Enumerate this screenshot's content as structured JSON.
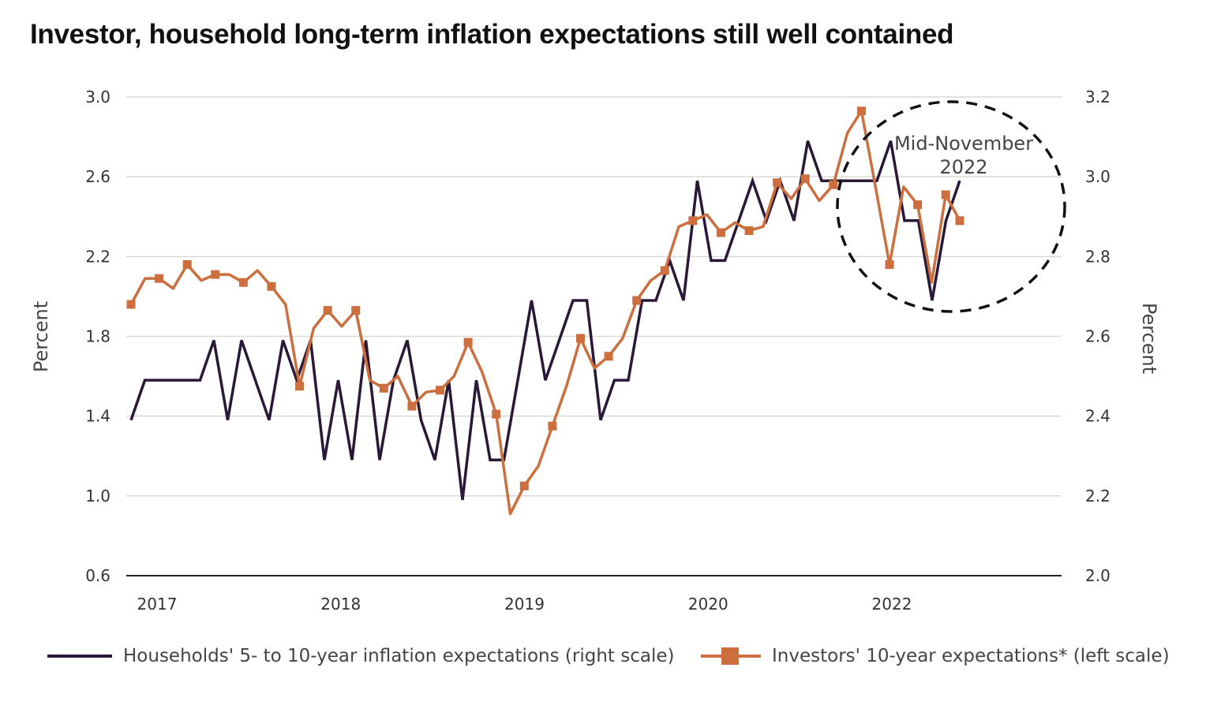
{
  "chart_data": {
    "type": "line",
    "title": "Investor, household long-term inflation expectations still well contained",
    "left_axis": {
      "label": "Percent",
      "range": [
        0.6,
        3.0
      ],
      "ticks": [
        "3.0",
        "2.6",
        "2.2",
        "1.8",
        "1.4",
        "1.0",
        "0.6"
      ]
    },
    "right_axis": {
      "label": "Percent",
      "range": [
        2.0,
        3.2
      ],
      "ticks": [
        "3.2",
        "3.0",
        "2.8",
        "2.6",
        "2.4",
        "2.2",
        "2.0"
      ]
    },
    "x_ticks": [
      "2017",
      "2018",
      "2019",
      "2020",
      "2022"
    ],
    "grid": true,
    "annotation": {
      "line1": "Mid-November",
      "line2": "2022"
    },
    "series": [
      {
        "name": "Households' 5- to 10-year inflation expectations (right scale)",
        "axis": "right",
        "color": "#2a1838",
        "marker": "none",
        "values": [
          2.39,
          2.49,
          2.49,
          2.49,
          2.49,
          2.49,
          2.59,
          2.39,
          2.59,
          2.49,
          2.39,
          2.59,
          2.49,
          2.59,
          2.29,
          2.49,
          2.29,
          2.59,
          2.29,
          2.49,
          2.59,
          2.39,
          2.29,
          2.49,
          2.19,
          2.49,
          2.29,
          2.29,
          2.49,
          2.69,
          2.49,
          2.59,
          2.69,
          2.69,
          2.39,
          2.49,
          2.49,
          2.69,
          2.69,
          2.79,
          2.69,
          2.99,
          2.79,
          2.79,
          2.89,
          2.99,
          2.89,
          2.99,
          2.89,
          3.09,
          2.99,
          2.99,
          2.99,
          2.99,
          2.99,
          3.09,
          2.89,
          2.89,
          2.69,
          2.89,
          2.99
        ]
      },
      {
        "name": "Investors' 10-year expectations* (left scale)",
        "axis": "left",
        "color": "#cc6e3e",
        "marker": "square",
        "values": [
          1.96,
          2.09,
          2.09,
          2.04,
          2.16,
          2.08,
          2.11,
          2.11,
          2.07,
          2.13,
          2.05,
          1.96,
          1.55,
          1.84,
          1.93,
          1.85,
          1.93,
          1.58,
          1.54,
          1.6,
          1.45,
          1.52,
          1.53,
          1.6,
          1.77,
          1.62,
          1.41,
          0.91,
          1.05,
          1.15,
          1.35,
          1.55,
          1.79,
          1.64,
          1.7,
          1.79,
          1.98,
          2.08,
          2.13,
          2.35,
          2.38,
          2.41,
          2.32,
          2.37,
          2.33,
          2.35,
          2.57,
          2.49,
          2.59,
          2.48,
          2.56,
          2.82,
          2.93,
          2.55,
          2.16,
          2.55,
          2.46,
          2.07,
          2.51,
          2.38
        ]
      }
    ]
  }
}
